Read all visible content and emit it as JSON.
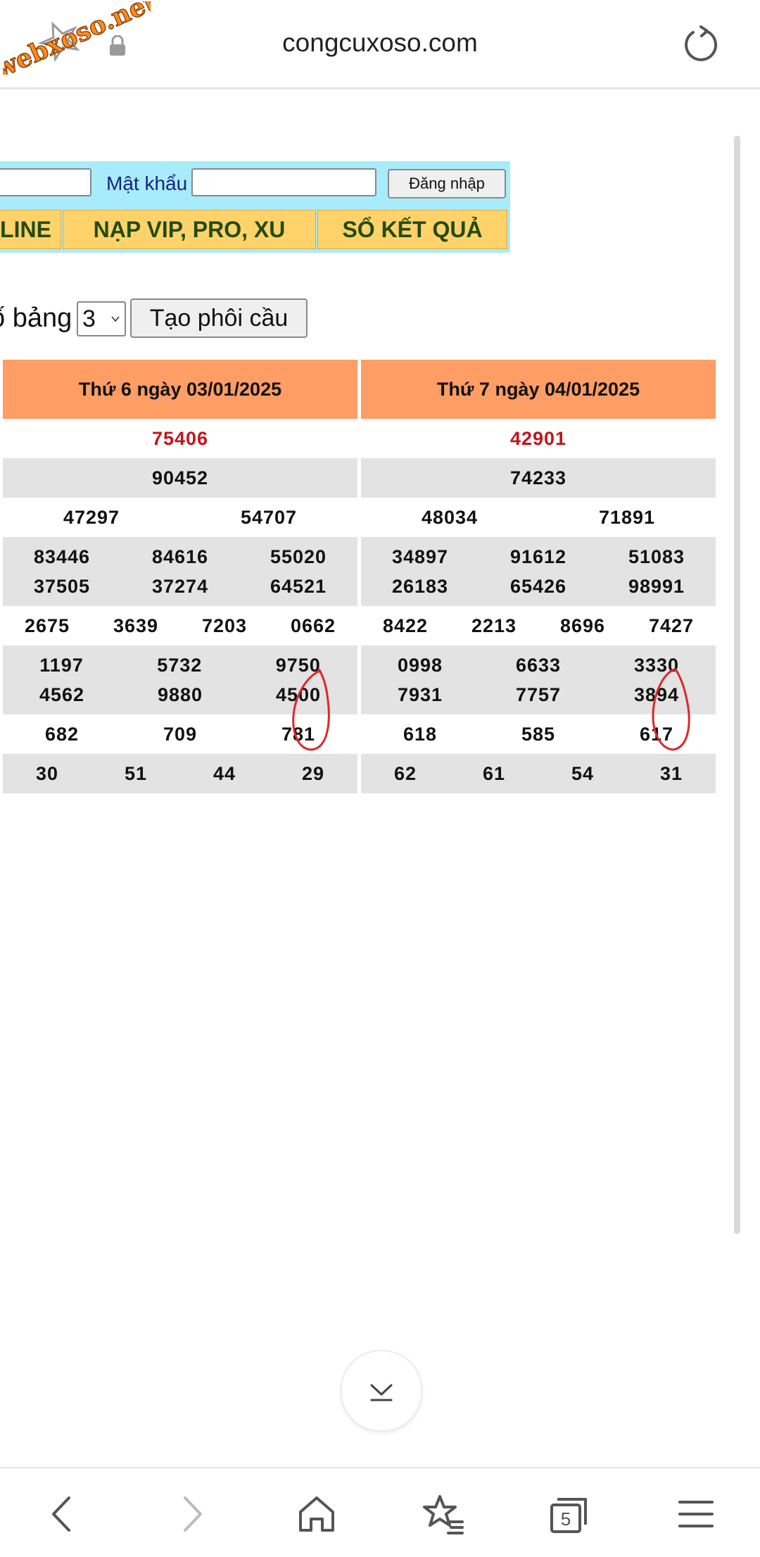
{
  "browser": {
    "url": "congcuxoso.com",
    "watermark_text": "webxoso.net",
    "tab_count": "5"
  },
  "login": {
    "password_label": "Mật khẩu",
    "username_value": "",
    "password_value": "",
    "submit_label": "Đăng nhập"
  },
  "nav": {
    "items": [
      "LINE",
      "NẠP VIP, PRO, XU",
      "SỔ KẾT QUẢ"
    ]
  },
  "controls": {
    "count_label": "ố bảng",
    "count_value": "3",
    "create_label": "Tạo phôi cầu"
  },
  "tables": [
    {
      "title": "Thứ 6 ngày 03/01/2025",
      "rows": [
        [
          [
            "75406"
          ]
        ],
        [
          [
            "90452"
          ]
        ],
        [
          [
            "47297",
            "54707"
          ]
        ],
        [
          [
            "83446",
            "84616",
            "55020"
          ],
          [
            "37505",
            "37274",
            "64521"
          ]
        ],
        [
          [
            "2675",
            "3639",
            "7203",
            "0662"
          ]
        ],
        [
          [
            "1197",
            "5732",
            "9750"
          ],
          [
            "4562",
            "9880",
            "4500"
          ]
        ],
        [
          [
            "682",
            "709",
            "781"
          ]
        ],
        [
          [
            "30",
            "51",
            "44",
            "29"
          ]
        ]
      ]
    },
    {
      "title": "Thứ 7 ngày 04/01/2025",
      "rows": [
        [
          [
            "42901"
          ]
        ],
        [
          [
            "74233"
          ]
        ],
        [
          [
            "48034",
            "71891"
          ]
        ],
        [
          [
            "34897",
            "91612",
            "51083"
          ],
          [
            "26183",
            "65426",
            "98991"
          ]
        ],
        [
          [
            "8422",
            "2213",
            "8696",
            "7427"
          ]
        ],
        [
          [
            "0998",
            "6633",
            "3330"
          ],
          [
            "7931",
            "7757",
            "3894"
          ]
        ],
        [
          [
            "618",
            "585",
            "617"
          ]
        ],
        [
          [
            "62",
            "61",
            "54",
            "31"
          ]
        ]
      ]
    }
  ],
  "colors": {
    "header_orange": "#fe9d64",
    "special_prize_red": "#c0161b",
    "nav_yellow": "#ffd36a",
    "login_cyan": "#a8ecfc",
    "annotation_red": "#d92a2a"
  },
  "icons": {
    "lock": "lock-icon",
    "reload": "reload-icon",
    "scroll_down": "scroll-to-bottom-icon",
    "back": "back-arrow-icon",
    "forward": "forward-arrow-icon",
    "home": "home-icon",
    "bookmarks": "bookmark-star-icon",
    "tabs": "tabs-icon",
    "menu": "hamburger-menu-icon"
  }
}
